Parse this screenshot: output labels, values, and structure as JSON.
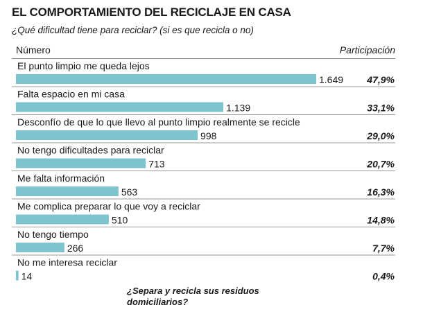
{
  "title": "EL COMPORTAMIENTO DEL RECICLAJE EN CASA",
  "subtitle": "¿Qué dificultad tiene para reciclar? (si es que recicla o no)",
  "column_headers": {
    "number": "Número",
    "share": "Participación"
  },
  "footnote": {
    "line1": "¿Separa y recicla sus residuos",
    "line2": "domiciliarios?"
  },
  "colors": {
    "bar": "#7ec4d0",
    "rule": "#9a9a9a",
    "text": "#1a1a1a"
  },
  "chart_data": {
    "type": "bar",
    "orientation": "horizontal",
    "categories": [
      "El punto limpio me queda lejos",
      "Falta espacio en mi casa",
      "Desconfío de que lo que llevo al punto limpio realmente se recicle",
      "No tengo dificultades para reciclar",
      "Me falta información",
      "Me complica preparar lo que voy a reciclar",
      "No tengo tiempo",
      "No me interesa reciclar"
    ],
    "values": [
      1649,
      1139,
      998,
      713,
      563,
      510,
      266,
      14
    ],
    "value_labels": [
      "1.649",
      "1.139",
      "998",
      "713",
      "563",
      "510",
      "266",
      "14"
    ],
    "share_labels": [
      "47,9%",
      "33,1%",
      "29,0%",
      "20,7%",
      "16,3%",
      "14,8%",
      "7,7%",
      "0,4%"
    ],
    "grid": false
  }
}
